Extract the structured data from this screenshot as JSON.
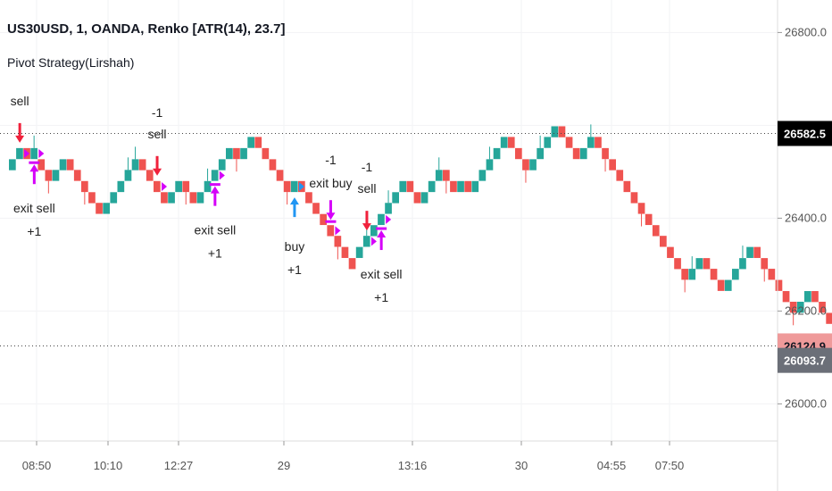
{
  "header": {
    "title": "US30USD, 1, OANDA, Renko [ATR(14), 23.7]",
    "indicator": "Pivot Strategy(Lirshah)"
  },
  "colors": {
    "up": "#26a69a",
    "down": "#ef5350",
    "long_arrow": "#2196f3",
    "short_arrow": "#f0213b",
    "exit_marker": "#d500f9",
    "last_price_bg": "#ef9a9a",
    "mid_tag_bg": "#6b6f78",
    "black_tag_bg": "#000000"
  },
  "chart_data": {
    "type": "renko",
    "x_ticks": [
      "08:50",
      "10:10",
      "12:27",
      "29",
      "13:16",
      "30",
      "04:55",
      "07:50"
    ],
    "y_ticks": [
      26800.0,
      26600.0,
      26400.0,
      26200.0,
      26000.0
    ],
    "y_tick_labels": [
      "26800.0",
      "26600.0",
      "26400.0",
      "26200.0",
      "26000.0"
    ],
    "ylim": [
      25920,
      26870
    ],
    "brick_size": 23.7,
    "bricks": [
      {
        "dir": "up",
        "top": 26527
      },
      {
        "dir": "up",
        "top": 26551
      },
      {
        "dir": "down",
        "top": 26551
      },
      {
        "dir": "up",
        "top": 26551
      },
      {
        "dir": "down",
        "top": 26527
      },
      {
        "dir": "down",
        "top": 26504
      },
      {
        "dir": "up",
        "top": 26504
      },
      {
        "dir": "up",
        "top": 26527
      },
      {
        "dir": "down",
        "top": 26527
      },
      {
        "dir": "down",
        "top": 26504
      },
      {
        "dir": "down",
        "top": 26480
      },
      {
        "dir": "down",
        "top": 26456
      },
      {
        "dir": "down",
        "top": 26433
      },
      {
        "dir": "up",
        "top": 26433
      },
      {
        "dir": "up",
        "top": 26456
      },
      {
        "dir": "up",
        "top": 26480
      },
      {
        "dir": "up",
        "top": 26504
      },
      {
        "dir": "up",
        "top": 26527
      },
      {
        "dir": "down",
        "top": 26527
      },
      {
        "dir": "down",
        "top": 26504
      },
      {
        "dir": "down",
        "top": 26480
      },
      {
        "dir": "down",
        "top": 26456
      },
      {
        "dir": "up",
        "top": 26456
      },
      {
        "dir": "up",
        "top": 26480
      },
      {
        "dir": "down",
        "top": 26480
      },
      {
        "dir": "down",
        "top": 26456
      },
      {
        "dir": "up",
        "top": 26456
      },
      {
        "dir": "up",
        "top": 26480
      },
      {
        "dir": "up",
        "top": 26504
      },
      {
        "dir": "up",
        "top": 26527
      },
      {
        "dir": "up",
        "top": 26551
      },
      {
        "dir": "down",
        "top": 26551
      },
      {
        "dir": "up",
        "top": 26551
      },
      {
        "dir": "up",
        "top": 26575
      },
      {
        "dir": "down",
        "top": 26575
      },
      {
        "dir": "down",
        "top": 26551
      },
      {
        "dir": "down",
        "top": 26527
      },
      {
        "dir": "down",
        "top": 26504
      },
      {
        "dir": "down",
        "top": 26480
      },
      {
        "dir": "up",
        "top": 26480
      },
      {
        "dir": "down",
        "top": 26480
      },
      {
        "dir": "down",
        "top": 26456
      },
      {
        "dir": "down",
        "top": 26433
      },
      {
        "dir": "down",
        "top": 26409
      },
      {
        "dir": "down",
        "top": 26385
      },
      {
        "dir": "down",
        "top": 26362
      },
      {
        "dir": "down",
        "top": 26338
      },
      {
        "dir": "down",
        "top": 26314
      },
      {
        "dir": "up",
        "top": 26338
      },
      {
        "dir": "up",
        "top": 26362
      },
      {
        "dir": "up",
        "top": 26385
      },
      {
        "dir": "up",
        "top": 26409
      },
      {
        "dir": "up",
        "top": 26433
      },
      {
        "dir": "up",
        "top": 26456
      },
      {
        "dir": "up",
        "top": 26480
      },
      {
        "dir": "down",
        "top": 26480
      },
      {
        "dir": "down",
        "top": 26456
      },
      {
        "dir": "up",
        "top": 26456
      },
      {
        "dir": "up",
        "top": 26480
      },
      {
        "dir": "up",
        "top": 26504
      },
      {
        "dir": "down",
        "top": 26504
      },
      {
        "dir": "down",
        "top": 26480
      },
      {
        "dir": "up",
        "top": 26480
      },
      {
        "dir": "down",
        "top": 26480
      },
      {
        "dir": "up",
        "top": 26480
      },
      {
        "dir": "up",
        "top": 26504
      },
      {
        "dir": "up",
        "top": 26527
      },
      {
        "dir": "up",
        "top": 26551
      },
      {
        "dir": "up",
        "top": 26575
      },
      {
        "dir": "down",
        "top": 26575
      },
      {
        "dir": "down",
        "top": 26551
      },
      {
        "dir": "down",
        "top": 26527
      },
      {
        "dir": "up",
        "top": 26527
      },
      {
        "dir": "up",
        "top": 26551
      },
      {
        "dir": "up",
        "top": 26575
      },
      {
        "dir": "up",
        "top": 26598
      },
      {
        "dir": "down",
        "top": 26598
      },
      {
        "dir": "down",
        "top": 26575
      },
      {
        "dir": "down",
        "top": 26551
      },
      {
        "dir": "up",
        "top": 26551
      },
      {
        "dir": "up",
        "top": 26575
      },
      {
        "dir": "down",
        "top": 26575
      },
      {
        "dir": "down",
        "top": 26551
      },
      {
        "dir": "down",
        "top": 26527
      },
      {
        "dir": "down",
        "top": 26504
      },
      {
        "dir": "down",
        "top": 26480
      },
      {
        "dir": "down",
        "top": 26456
      },
      {
        "dir": "down",
        "top": 26433
      },
      {
        "dir": "down",
        "top": 26409
      },
      {
        "dir": "down",
        "top": 26385
      },
      {
        "dir": "down",
        "top": 26362
      },
      {
        "dir": "down",
        "top": 26338
      },
      {
        "dir": "down",
        "top": 26314
      },
      {
        "dir": "down",
        "top": 26291
      },
      {
        "dir": "up",
        "top": 26291
      },
      {
        "dir": "up",
        "top": 26314
      },
      {
        "dir": "down",
        "top": 26314
      },
      {
        "dir": "down",
        "top": 26291
      },
      {
        "dir": "down",
        "top": 26267
      },
      {
        "dir": "up",
        "top": 26267
      },
      {
        "dir": "up",
        "top": 26291
      },
      {
        "dir": "up",
        "top": 26314
      },
      {
        "dir": "up",
        "top": 26338
      },
      {
        "dir": "down",
        "top": 26338
      },
      {
        "dir": "down",
        "top": 26314
      },
      {
        "dir": "down",
        "top": 26291
      },
      {
        "dir": "down",
        "top": 26267
      },
      {
        "dir": "down",
        "top": 26243
      },
      {
        "dir": "down",
        "top": 26220
      },
      {
        "dir": "up",
        "top": 26220
      },
      {
        "dir": "up",
        "top": 26243
      },
      {
        "dir": "down",
        "top": 26243
      },
      {
        "dir": "down",
        "top": 26220
      },
      {
        "dir": "down",
        "top": 26196
      },
      {
        "dir": "down",
        "top": 26172
      },
      {
        "dir": "down",
        "top": 26149
      },
      {
        "dir": "down",
        "top": 26125
      }
    ],
    "signals": [
      {
        "type": "short_entry",
        "label": "sell",
        "qty": "",
        "brick": 1
      },
      {
        "type": "exit_short",
        "label": "exit sell",
        "qty": "+1",
        "brick": 3
      },
      {
        "type": "short_entry",
        "label": "sell",
        "qty": "-1",
        "brick": 20
      },
      {
        "type": "exit_short",
        "label": "exit sell",
        "qty": "+1",
        "brick": 28
      },
      {
        "type": "long_entry",
        "label": "buy",
        "qty": "+1",
        "brick": 39
      },
      {
        "type": "exit_long",
        "label": "exit buy",
        "qty": "-1",
        "brick": 44
      },
      {
        "type": "short_entry",
        "label": "sell",
        "qty": "-1",
        "brick": 49
      },
      {
        "type": "exit_short",
        "label": "exit sell",
        "qty": "+1",
        "brick": 51
      }
    ],
    "price_tags": [
      {
        "value": 26582.5,
        "label": "26582.5",
        "style": "black",
        "line": true
      },
      {
        "value": 26124.9,
        "label": "26124.9",
        "style": "last",
        "line": true
      },
      {
        "value": 26093.7,
        "label": "26093.7",
        "style": "mid",
        "line": false
      }
    ]
  }
}
